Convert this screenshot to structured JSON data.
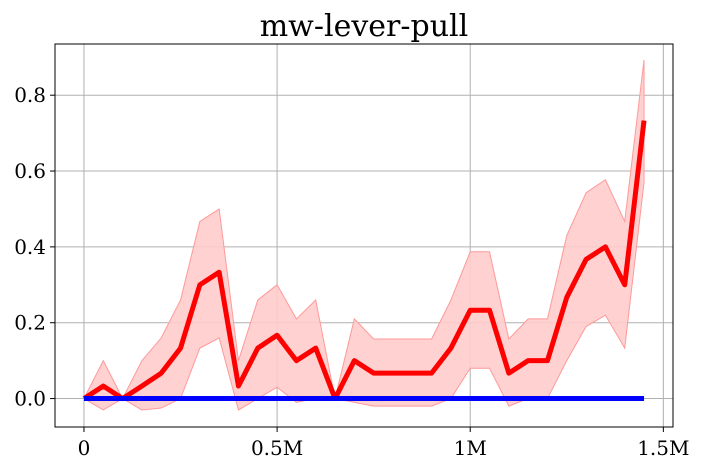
{
  "chart_data": {
    "type": "line",
    "title": "mw-lever-pull",
    "xlabel": "",
    "ylabel": "",
    "xlim": [
      -75000,
      1525000
    ],
    "ylim": [
      -0.075,
      0.935
    ],
    "grid": true,
    "x_ticks": [
      {
        "value": 0,
        "label": "0"
      },
      {
        "value": 500000,
        "label": "0.5M"
      },
      {
        "value": 1000000,
        "label": "1M"
      },
      {
        "value": 1500000,
        "label": "1.5M"
      }
    ],
    "y_ticks": [
      {
        "value": 0.0,
        "label": "0.0"
      },
      {
        "value": 0.2,
        "label": "0.2"
      },
      {
        "value": 0.4,
        "label": "0.4"
      },
      {
        "value": 0.6,
        "label": "0.6"
      },
      {
        "value": 0.8,
        "label": "0.8"
      }
    ],
    "x": [
      0,
      50000,
      100000,
      150000,
      200000,
      250000,
      300000,
      350000,
      400000,
      450000,
      500000,
      550000,
      600000,
      650000,
      700000,
      750000,
      800000,
      850000,
      900000,
      950000,
      1000000,
      1050000,
      1100000,
      1150000,
      1200000,
      1250000,
      1300000,
      1350000,
      1400000,
      1450000
    ],
    "series": [
      {
        "color": "#ff0000",
        "band_color": "#ffcccc",
        "values": [
          0.0,
          0.033,
          0.0,
          0.033,
          0.067,
          0.133,
          0.3,
          0.333,
          0.033,
          0.133,
          0.167,
          0.1,
          0.133,
          0.0,
          0.1,
          0.067,
          0.067,
          0.067,
          0.067,
          0.133,
          0.233,
          0.233,
          0.067,
          0.1,
          0.1,
          0.267,
          0.367,
          0.4,
          0.3,
          0.733
        ],
        "lower": [
          0.0,
          -0.03,
          0.0,
          -0.03,
          -0.025,
          0.0,
          0.133,
          0.16,
          -0.03,
          0.0,
          0.03,
          -0.01,
          0.0,
          0.0,
          -0.01,
          -0.02,
          -0.02,
          -0.02,
          -0.02,
          0.0,
          0.08,
          0.08,
          -0.02,
          0.0,
          0.0,
          0.1,
          0.19,
          0.22,
          0.133,
          0.57
        ],
        "upper": [
          0.0,
          0.1,
          0.0,
          0.1,
          0.16,
          0.26,
          0.467,
          0.5,
          0.1,
          0.26,
          0.3,
          0.21,
          0.26,
          0.0,
          0.21,
          0.157,
          0.157,
          0.157,
          0.157,
          0.26,
          0.387,
          0.387,
          0.157,
          0.21,
          0.21,
          0.43,
          0.543,
          0.577,
          0.467,
          0.893
        ]
      },
      {
        "color": "#0000ff",
        "values": [
          0,
          0,
          0,
          0,
          0,
          0,
          0,
          0,
          0,
          0,
          0,
          0,
          0,
          0,
          0,
          0,
          0,
          0,
          0,
          0,
          0,
          0,
          0,
          0,
          0,
          0,
          0,
          0,
          0,
          0
        ]
      }
    ]
  }
}
